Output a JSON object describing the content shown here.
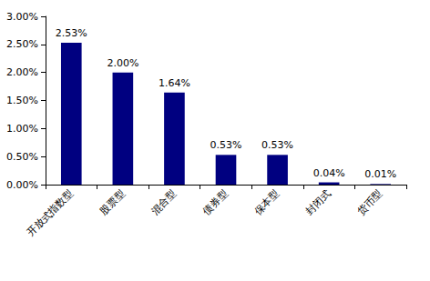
{
  "chart_data": {
    "type": "bar",
    "categories": [
      "开放式指数型",
      "股票型",
      "混合型",
      "债券型",
      "保本型",
      "封闭式",
      "货币型"
    ],
    "values": [
      2.53,
      2.0,
      1.64,
      0.53,
      0.53,
      0.04,
      0.01
    ],
    "value_labels": [
      "2.53%",
      "2.00%",
      "1.64%",
      "0.53%",
      "0.53%",
      "0.04%",
      "0.01%"
    ],
    "color": "#000080",
    "ylim": [
      0,
      3
    ],
    "yticks": [
      {
        "value": 0,
        "label": "0.00%"
      },
      {
        "value": 0.5,
        "label": "0.50%"
      },
      {
        "value": 1,
        "label": "1.00%"
      },
      {
        "value": 1.5,
        "label": "1.50%"
      },
      {
        "value": 2,
        "label": "2.00%"
      },
      {
        "value": 2.5,
        "label": "2.50%"
      },
      {
        "value": 3,
        "label": "3.00%"
      }
    ],
    "grid": false,
    "data_labels": true
  }
}
